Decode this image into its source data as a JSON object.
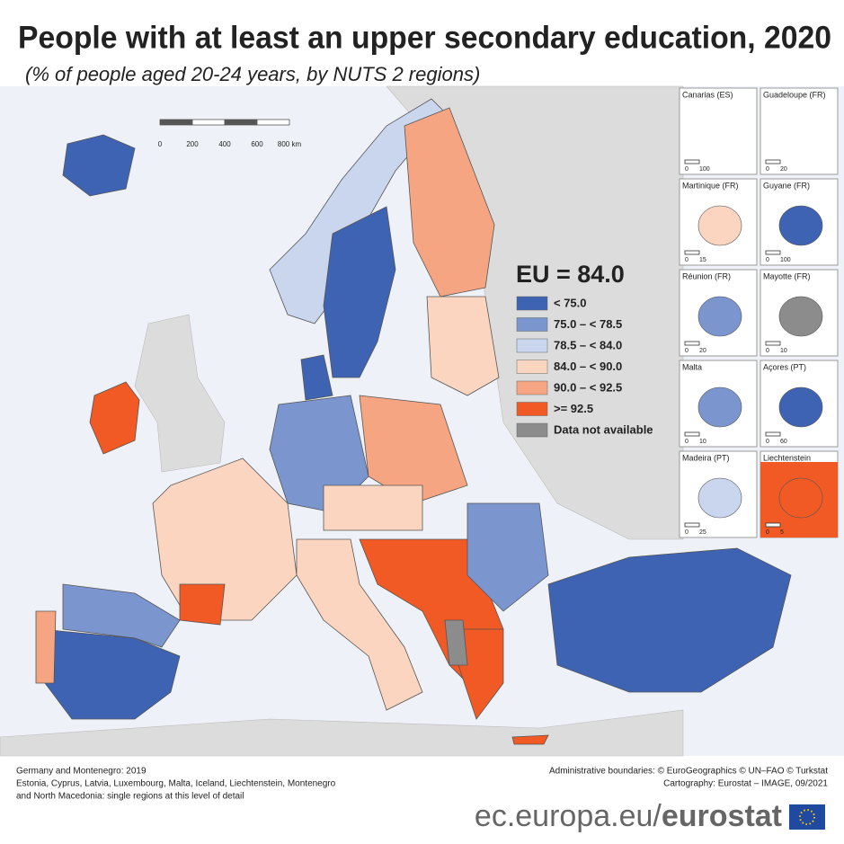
{
  "header": {
    "title": "People with at least an upper secondary education, 2020",
    "subtitle": "(% of people aged 20-24 years, by NUTS 2 regions)"
  },
  "scale_bar": [
    "0",
    "200",
    "400",
    "600",
    "800 km"
  ],
  "legend": {
    "headline": "EU = 84.0",
    "items": [
      {
        "label": "< 75.0",
        "color": "#3f63b3"
      },
      {
        "label": "75.0 – < 78.5",
        "color": "#7b95cf"
      },
      {
        "label": "78.5 – < 84.0",
        "color": "#c9d6ee"
      },
      {
        "label": "84.0 – < 90.0",
        "color": "#fcd5c0"
      },
      {
        "label": "90.0 – < 92.5",
        "color": "#f6a582"
      },
      {
        "label": ">= 92.5",
        "color": "#f15a24"
      },
      {
        "label": "Data not available",
        "color": "#8c8c8c"
      }
    ]
  },
  "insets": [
    {
      "title": "Canarias (ES)",
      "scale": [
        "0",
        "100"
      ]
    },
    {
      "title": "Guadeloupe (FR)",
      "scale": [
        "0",
        "20"
      ]
    },
    {
      "title": "Martinique (FR)",
      "scale": [
        "0",
        "15"
      ]
    },
    {
      "title": "Guyane (FR)",
      "scale": [
        "0",
        "100"
      ]
    },
    {
      "title": "Réunion (FR)",
      "scale": [
        "0",
        "20"
      ]
    },
    {
      "title": "Mayotte (FR)",
      "scale": [
        "0",
        "10"
      ]
    },
    {
      "title": "Malta",
      "scale": [
        "0",
        "10"
      ]
    },
    {
      "title": "Açores (PT)",
      "scale": [
        "0",
        "60"
      ]
    },
    {
      "title": "Madeira (PT)",
      "scale": [
        "0",
        "25"
      ]
    },
    {
      "title": "Liechtenstein",
      "scale": [
        "0",
        "5"
      ]
    }
  ],
  "notes": {
    "left": [
      "Germany and Montenegro: 2019",
      "Estonia, Cyprus, Latvia, Luxembourg, Malta, Iceland, Liechtenstein, Montenegro",
      "and North Macedonia: single regions at this level of detail"
    ],
    "right": [
      "Administrative boundaries: © EuroGeographics © UN–FAO © Turkstat",
      "Cartography: Eurostat – IMAGE, 09/2021"
    ]
  },
  "footer": {
    "url": "ec.europa.eu/",
    "brand": "eurostat"
  }
}
